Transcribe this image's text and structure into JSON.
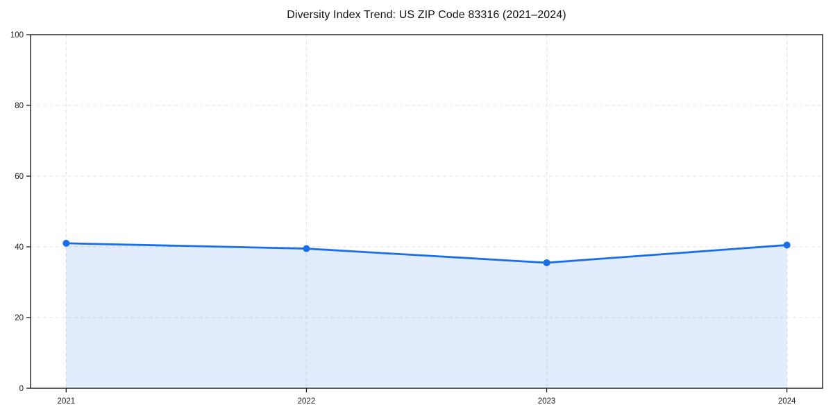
{
  "title": "Diversity Index Trend: US ZIP Code 83316 (2021–2024)",
  "chart_data": {
    "type": "line",
    "title": "Diversity Index Trend: US ZIP Code 83316 (2021–2024)",
    "categories": [
      "2021",
      "2022",
      "2023",
      "2024"
    ],
    "series": [
      {
        "name": "Diversity Index",
        "values": [
          41.0,
          39.5,
          35.5,
          40.5
        ]
      }
    ],
    "xlabel": "",
    "ylabel": "",
    "ylim": [
      0,
      100
    ],
    "yticks": [
      0,
      20,
      40,
      60,
      80,
      100
    ],
    "grid": true,
    "grid_style": "dashed",
    "legend_position": "none",
    "marker": "circle",
    "area_fill": true,
    "colors": {
      "line": "#1a6fe8",
      "marker": "#1a6fe8",
      "fill": "#1a6fe8",
      "fill_opacity": 0.13,
      "grid": "#e3e3e3",
      "spine": "#1a1a1a",
      "tick_label": "#1a1a1a",
      "background": "#ffffff"
    }
  }
}
